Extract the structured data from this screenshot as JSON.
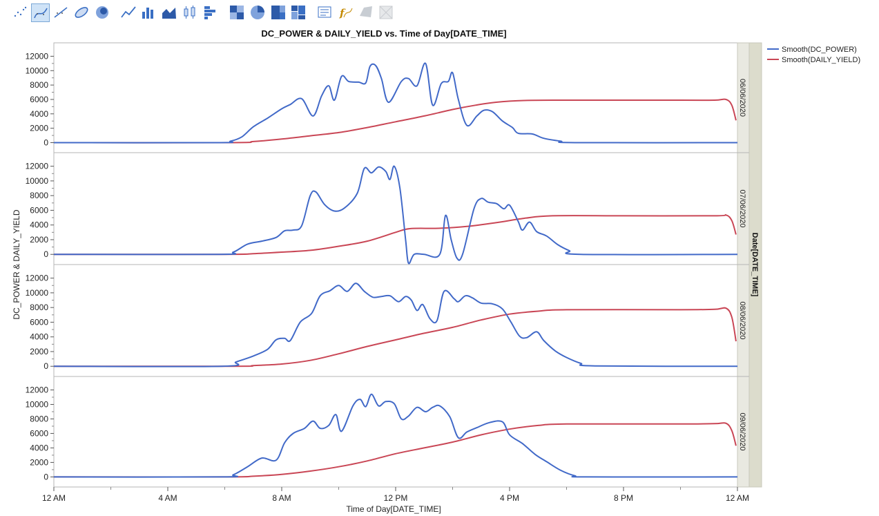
{
  "toolbar": {
    "icons": [
      "points-icon",
      "smoother-icon",
      "line-fit-icon",
      "ellipse-icon",
      "contour-icon",
      "line-icon",
      "bar-icon",
      "area-icon",
      "box-plot-icon",
      "histogram-icon",
      "heatmap-icon",
      "pie-icon",
      "treemap-icon",
      "mosaic-icon",
      "caption-box-icon",
      "formula-icon",
      "map-shapes-icon",
      "blank-icon"
    ],
    "selected": "smoother-icon"
  },
  "chart_data": {
    "type": "line",
    "title": "DC_POWER & DAILY_YIELD vs. Time of Day[DATE_TIME]",
    "xlabel": "Time of Day[DATE_TIME]",
    "ylabel": "DC_POWER & DAILY_YIELD",
    "group_label": "Date[DATE_TIME]",
    "x_unit": "hour of day",
    "xlim": [
      0,
      24
    ],
    "x_ticks": [
      0,
      4,
      8,
      12,
      16,
      20,
      24
    ],
    "x_tick_labels": [
      "12 AM",
      "4 AM",
      "8 AM",
      "12 PM",
      "4 PM",
      "8 PM",
      "12 AM"
    ],
    "ylim": [
      -1200,
      13000
    ],
    "y_ticks": [
      0,
      2000,
      4000,
      6000,
      8000,
      10000,
      12000
    ],
    "y_tick_labels": [
      "0",
      "2000",
      "4000",
      "6000",
      "8000",
      "10000",
      "12000"
    ],
    "legend_position": "top-right",
    "colors": {
      "dc_power": "#4169c8",
      "daily_yield": "#c94655"
    },
    "legend": [
      {
        "key": "dc_power",
        "label": "Smooth(DC_POWER)"
      },
      {
        "key": "daily_yield",
        "label": "Smooth(DAILY_YIELD)"
      }
    ],
    "panels": [
      {
        "date": "06/06/2020",
        "dc_power": [
          [
            0,
            0
          ],
          [
            5.7,
            0
          ],
          [
            6.2,
            200
          ],
          [
            6.6,
            800
          ],
          [
            7.0,
            2200
          ],
          [
            7.5,
            3400
          ],
          [
            8.0,
            4700
          ],
          [
            8.3,
            5300
          ],
          [
            8.7,
            6100
          ],
          [
            9.1,
            3700
          ],
          [
            9.4,
            6500
          ],
          [
            9.65,
            7900
          ],
          [
            9.85,
            5900
          ],
          [
            10.1,
            9200
          ],
          [
            10.35,
            8500
          ],
          [
            10.7,
            8400
          ],
          [
            10.95,
            8300
          ],
          [
            11.1,
            10600
          ],
          [
            11.3,
            10700
          ],
          [
            11.5,
            8900
          ],
          [
            11.75,
            5600
          ],
          [
            12.2,
            8500
          ],
          [
            12.45,
            8900
          ],
          [
            12.75,
            7900
          ],
          [
            13.05,
            11000
          ],
          [
            13.3,
            5200
          ],
          [
            13.6,
            8200
          ],
          [
            13.85,
            8500
          ],
          [
            14.0,
            9700
          ],
          [
            14.2,
            6000
          ],
          [
            14.5,
            2400
          ],
          [
            14.85,
            3700
          ],
          [
            15.1,
            4500
          ],
          [
            15.4,
            4300
          ],
          [
            15.75,
            3000
          ],
          [
            16.1,
            2100
          ],
          [
            16.3,
            1300
          ],
          [
            16.8,
            1200
          ],
          [
            17.2,
            600
          ],
          [
            17.8,
            200
          ],
          [
            18.3,
            0
          ],
          [
            24.0,
            0
          ]
        ],
        "daily_yield": [
          [
            0,
            0
          ],
          [
            6.2,
            0
          ],
          [
            7.0,
            150
          ],
          [
            8.0,
            500
          ],
          [
            9.0,
            950
          ],
          [
            10.0,
            1400
          ],
          [
            11.0,
            2100
          ],
          [
            12.0,
            2900
          ],
          [
            13.0,
            3700
          ],
          [
            14.0,
            4600
          ],
          [
            14.8,
            5200
          ],
          [
            15.5,
            5600
          ],
          [
            16.5,
            5850
          ],
          [
            18.0,
            5900
          ],
          [
            22.0,
            5900
          ],
          [
            23.2,
            5900
          ],
          [
            23.6,
            6000
          ],
          [
            23.8,
            5200
          ],
          [
            23.95,
            3100
          ]
        ]
      },
      {
        "date": "07/06/2020",
        "dc_power": [
          [
            0,
            0
          ],
          [
            5.8,
            0
          ],
          [
            6.3,
            300
          ],
          [
            6.8,
            1400
          ],
          [
            7.3,
            1800
          ],
          [
            7.8,
            2300
          ],
          [
            8.1,
            3200
          ],
          [
            8.4,
            3300
          ],
          [
            8.7,
            3900
          ],
          [
            9.0,
            8000
          ],
          [
            9.2,
            8500
          ],
          [
            9.5,
            6800
          ],
          [
            9.85,
            5900
          ],
          [
            10.2,
            6300
          ],
          [
            10.65,
            8300
          ],
          [
            10.9,
            11700
          ],
          [
            11.15,
            11100
          ],
          [
            11.4,
            11900
          ],
          [
            11.65,
            11300
          ],
          [
            11.8,
            10200
          ],
          [
            11.95,
            12000
          ],
          [
            12.15,
            9000
          ],
          [
            12.35,
            2000
          ],
          [
            12.45,
            -1200
          ],
          [
            12.65,
            0
          ],
          [
            13.0,
            0
          ],
          [
            13.55,
            0
          ],
          [
            13.75,
            5300
          ],
          [
            13.95,
            2000
          ],
          [
            14.15,
            -500
          ],
          [
            14.35,
            0
          ],
          [
            14.75,
            6200
          ],
          [
            15.0,
            7600
          ],
          [
            15.25,
            7100
          ],
          [
            15.55,
            6900
          ],
          [
            15.8,
            6200
          ],
          [
            16.0,
            6700
          ],
          [
            16.3,
            4500
          ],
          [
            16.45,
            3300
          ],
          [
            16.7,
            4400
          ],
          [
            16.95,
            3100
          ],
          [
            17.3,
            2500
          ],
          [
            17.7,
            1300
          ],
          [
            18.1,
            500
          ],
          [
            18.5,
            0
          ],
          [
            24.0,
            0
          ]
        ],
        "daily_yield": [
          [
            0,
            0
          ],
          [
            6.0,
            0
          ],
          [
            7.0,
            100
          ],
          [
            8.0,
            300
          ],
          [
            9.0,
            550
          ],
          [
            10.0,
            1100
          ],
          [
            11.0,
            1800
          ],
          [
            12.0,
            3000
          ],
          [
            12.5,
            3500
          ],
          [
            13.5,
            3550
          ],
          [
            14.5,
            3800
          ],
          [
            15.5,
            4300
          ],
          [
            16.5,
            4900
          ],
          [
            17.5,
            5250
          ],
          [
            20.0,
            5250
          ],
          [
            23.2,
            5250
          ],
          [
            23.6,
            5350
          ],
          [
            23.8,
            4600
          ],
          [
            23.95,
            2700
          ]
        ]
      },
      {
        "date": "08/06/2020",
        "dc_power": [
          [
            0,
            0
          ],
          [
            5.9,
            0
          ],
          [
            6.4,
            600
          ],
          [
            7.0,
            1400
          ],
          [
            7.5,
            2300
          ],
          [
            7.8,
            3600
          ],
          [
            8.1,
            3800
          ],
          [
            8.3,
            3500
          ],
          [
            8.65,
            6000
          ],
          [
            9.05,
            7200
          ],
          [
            9.35,
            9600
          ],
          [
            9.7,
            10300
          ],
          [
            10.0,
            11000
          ],
          [
            10.3,
            10200
          ],
          [
            10.6,
            11300
          ],
          [
            10.9,
            10200
          ],
          [
            11.2,
            9400
          ],
          [
            11.5,
            9500
          ],
          [
            11.8,
            9600
          ],
          [
            12.1,
            8800
          ],
          [
            12.35,
            9500
          ],
          [
            12.55,
            9000
          ],
          [
            12.75,
            7600
          ],
          [
            12.95,
            8400
          ],
          [
            13.2,
            6500
          ],
          [
            13.45,
            6200
          ],
          [
            13.7,
            10200
          ],
          [
            14.05,
            9200
          ],
          [
            14.2,
            8800
          ],
          [
            14.45,
            9600
          ],
          [
            14.7,
            9300
          ],
          [
            15.0,
            8600
          ],
          [
            15.4,
            8500
          ],
          [
            15.75,
            7800
          ],
          [
            16.05,
            6000
          ],
          [
            16.35,
            4100
          ],
          [
            16.6,
            3900
          ],
          [
            16.95,
            4700
          ],
          [
            17.2,
            3500
          ],
          [
            17.6,
            2100
          ],
          [
            18.0,
            1200
          ],
          [
            18.5,
            400
          ],
          [
            19.0,
            50
          ],
          [
            24.0,
            0
          ]
        ],
        "daily_yield": [
          [
            0,
            0
          ],
          [
            6.3,
            0
          ],
          [
            7.0,
            100
          ],
          [
            8.0,
            300
          ],
          [
            9.0,
            800
          ],
          [
            10.0,
            1700
          ],
          [
            11.0,
            2700
          ],
          [
            12.0,
            3600
          ],
          [
            13.0,
            4500
          ],
          [
            14.0,
            5300
          ],
          [
            15.0,
            6300
          ],
          [
            16.0,
            7100
          ],
          [
            17.0,
            7500
          ],
          [
            18.0,
            7700
          ],
          [
            22.0,
            7700
          ],
          [
            23.2,
            7750
          ],
          [
            23.6,
            7900
          ],
          [
            23.8,
            6700
          ],
          [
            23.95,
            3400
          ]
        ]
      },
      {
        "date": "09/06/2020",
        "dc_power": [
          [
            0,
            0
          ],
          [
            5.9,
            0
          ],
          [
            6.3,
            300
          ],
          [
            6.8,
            1400
          ],
          [
            7.3,
            2600
          ],
          [
            7.8,
            2300
          ],
          [
            8.1,
            4700
          ],
          [
            8.4,
            6000
          ],
          [
            8.8,
            6700
          ],
          [
            9.1,
            7700
          ],
          [
            9.35,
            6700
          ],
          [
            9.65,
            7100
          ],
          [
            9.9,
            8600
          ],
          [
            10.1,
            6300
          ],
          [
            10.5,
            9800
          ],
          [
            10.75,
            10700
          ],
          [
            10.95,
            9700
          ],
          [
            11.15,
            11400
          ],
          [
            11.4,
            9800
          ],
          [
            11.65,
            10400
          ],
          [
            11.95,
            10100
          ],
          [
            12.2,
            8000
          ],
          [
            12.45,
            8400
          ],
          [
            12.75,
            9600
          ],
          [
            13.05,
            9000
          ],
          [
            13.3,
            9600
          ],
          [
            13.55,
            9800
          ],
          [
            13.9,
            8300
          ],
          [
            14.2,
            5400
          ],
          [
            14.5,
            6200
          ],
          [
            14.85,
            6800
          ],
          [
            15.3,
            7500
          ],
          [
            15.75,
            7600
          ],
          [
            16.0,
            5800
          ],
          [
            16.45,
            4600
          ],
          [
            16.9,
            3100
          ],
          [
            17.3,
            2100
          ],
          [
            17.8,
            900
          ],
          [
            18.3,
            150
          ],
          [
            18.7,
            0
          ],
          [
            24.0,
            0
          ]
        ],
        "daily_yield": [
          [
            0,
            0
          ],
          [
            6.0,
            0
          ],
          [
            7.0,
            100
          ],
          [
            8.0,
            350
          ],
          [
            9.0,
            800
          ],
          [
            10.0,
            1400
          ],
          [
            11.0,
            2200
          ],
          [
            12.0,
            3200
          ],
          [
            13.0,
            4000
          ],
          [
            14.0,
            4800
          ],
          [
            15.0,
            5800
          ],
          [
            16.0,
            6600
          ],
          [
            17.0,
            7100
          ],
          [
            18.0,
            7300
          ],
          [
            22.0,
            7300
          ],
          [
            23.2,
            7350
          ],
          [
            23.6,
            7400
          ],
          [
            23.8,
            6400
          ],
          [
            23.95,
            4300
          ]
        ]
      }
    ]
  }
}
